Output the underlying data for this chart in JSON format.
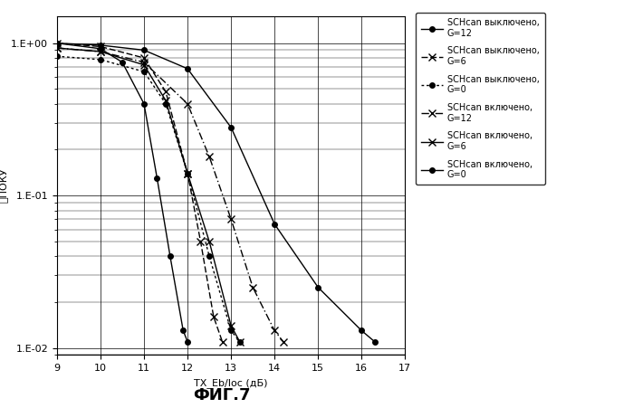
{
  "title": "",
  "xlabel": "TX_Eb/Ioc (дБ)",
  "ylabel": "䉿ПОКУ",
  "fig_label": "ФИГ.7",
  "xlim": [
    9,
    17
  ],
  "xticks": [
    9,
    10,
    11,
    12,
    13,
    14,
    15,
    16,
    17
  ],
  "background_color": "white",
  "font_color": "black",
  "curves": [
    {
      "label": "SCHcan выключено,\nG=12",
      "x": [
        9,
        10,
        10.5,
        11,
        11.3,
        11.6,
        11.9,
        12.0
      ],
      "y": [
        1.0,
        0.92,
        0.75,
        0.4,
        0.13,
        0.04,
        0.013,
        0.011
      ],
      "linestyle": "-",
      "marker": "o",
      "markersize": 4,
      "dashes": []
    },
    {
      "label": "SCHcan выключено,\nG=6",
      "x": [
        9,
        10,
        11,
        11.5,
        12,
        12.3,
        12.6,
        12.8
      ],
      "y": [
        1.0,
        0.95,
        0.8,
        0.48,
        0.14,
        0.05,
        0.016,
        0.011
      ],
      "linestyle": "--",
      "marker": "x",
      "markersize": 6,
      "dashes": [
        5,
        2
      ]
    },
    {
      "label": "SCHcan выключено,\nG=0",
      "x": [
        9,
        10,
        11,
        11.5,
        12,
        12.5,
        13,
        13.2
      ],
      "y": [
        0.82,
        0.78,
        0.65,
        0.4,
        0.14,
        0.04,
        0.013,
        0.011
      ],
      "linestyle": "--",
      "marker": "o",
      "markersize": 4,
      "dashes": [
        2,
        2
      ]
    },
    {
      "label": "SCHcan включено,\nG=12",
      "x": [
        9,
        10,
        11,
        12,
        12.5,
        13,
        13.5,
        14,
        14.2
      ],
      "y": [
        0.93,
        0.88,
        0.75,
        0.4,
        0.18,
        0.07,
        0.025,
        0.013,
        0.011
      ],
      "linestyle": "--",
      "marker": "x",
      "markersize": 6,
      "dashes": [
        6,
        2,
        1,
        2
      ]
    },
    {
      "label": "SCHcan включено,\nG=6",
      "x": [
        9,
        10,
        11,
        11.5,
        12,
        12.5,
        13,
        13.2
      ],
      "y": [
        0.93,
        0.88,
        0.72,
        0.42,
        0.14,
        0.05,
        0.014,
        0.011
      ],
      "linestyle": "-",
      "marker": "x",
      "markersize": 6,
      "dashes": []
    },
    {
      "label": "SCHcan включено,\nG=0",
      "x": [
        9,
        10,
        11,
        12,
        13,
        14,
        15,
        16,
        16.3
      ],
      "y": [
        1.0,
        0.97,
        0.9,
        0.68,
        0.28,
        0.065,
        0.025,
        0.013,
        0.011
      ],
      "linestyle": "-",
      "marker": "o",
      "markersize": 4,
      "dashes": []
    }
  ]
}
